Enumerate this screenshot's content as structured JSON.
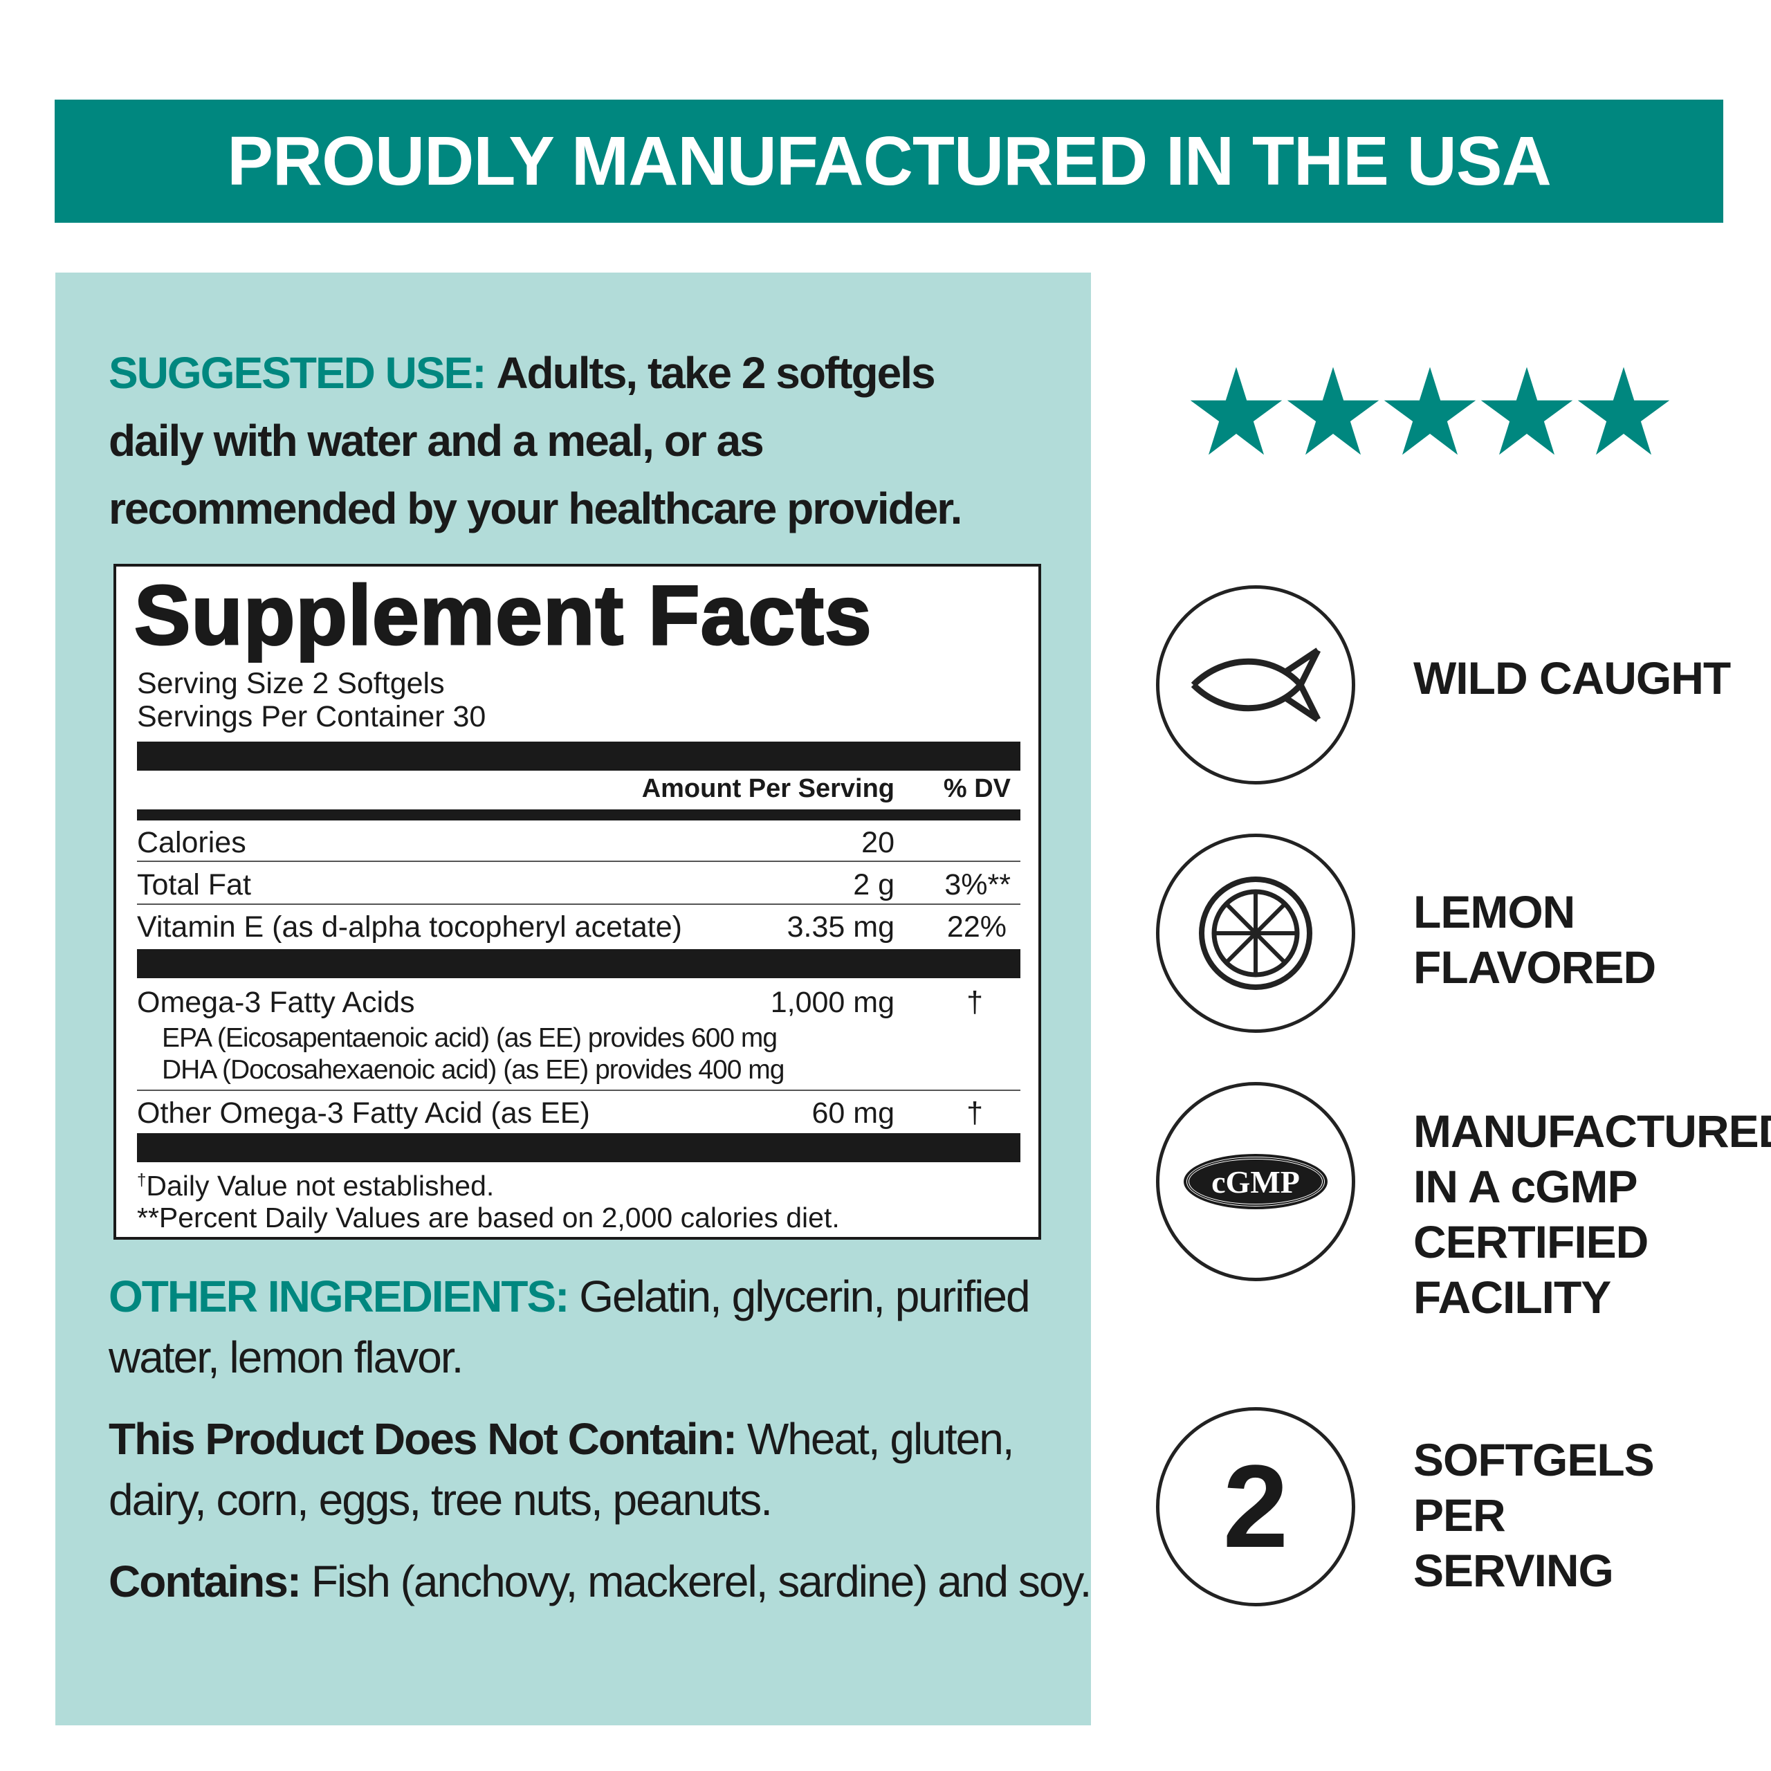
{
  "banner": {
    "text": "PROUDLY MANUFACTURED IN THE USA",
    "color": "#00877f"
  },
  "panel_color": "#b2dcd9",
  "suggested_use": {
    "label": "SUGGESTED USE:",
    "text": "Adults, take 2 softgels daily with water and a meal, or as recommended by your healthcare provider."
  },
  "facts": {
    "title": "Supplement Facts",
    "serving_size": "Serving Size 2 Softgels",
    "servings_per_container": "Servings Per Container 30",
    "col_amount": "Amount Per Serving",
    "col_dv": "% DV",
    "rows": [
      {
        "name": "Calories",
        "amount": "20",
        "dv": ""
      },
      {
        "name": "Total Fat",
        "amount": "2 g",
        "dv": "3%**"
      },
      {
        "name": "Vitamin E (as d-alpha tocopheryl acetate)",
        "amount": "3.35 mg",
        "dv": "22%"
      },
      {
        "name": "Omega-3 Fatty Acids",
        "amount": "1,000 mg",
        "dv": "†"
      },
      {
        "name": "Other Omega-3 Fatty Acid (as EE)",
        "amount": "60 mg",
        "dv": "†"
      }
    ],
    "sub": [
      "EPA (Eicosapentaenoic acid) (as EE) provides 600 mg",
      "DHA (Docosahexaenoic acid) (as EE) provides 400 mg"
    ],
    "foot_dagger": "†",
    "foot1": "Daily Value not established.",
    "foot2": "**Percent Daily Values are based on 2,000 calories diet."
  },
  "other_ingredients": {
    "label": "OTHER INGREDIENTS:",
    "text": "Gelatin, glycerin, purified water, lemon flavor."
  },
  "does_not_contain": {
    "label": "This Product Does Not Contain:",
    "text": "Wheat, gluten, dairy, corn, eggs, tree nuts, peanuts."
  },
  "contains": {
    "label": "Contains:",
    "text": "Fish (anchovy, mackerel, sardine) and soy."
  },
  "rating": {
    "stars": 5,
    "max": 5,
    "color": "#00877f"
  },
  "features": [
    {
      "icon": "fish-icon",
      "lines": [
        "WILD CAUGHT"
      ]
    },
    {
      "icon": "lemon-icon",
      "lines": [
        "LEMON",
        "FLAVORED"
      ]
    },
    {
      "icon": "cgmp-icon",
      "badge": "cGMP",
      "lines": [
        "MANUFACTURED",
        "IN A cGMP",
        "CERTIFIED",
        "FACILITY"
      ]
    },
    {
      "icon": "number-icon",
      "number": "2",
      "lines": [
        "SOFTGELS",
        "PER",
        "SERVING"
      ]
    }
  ]
}
